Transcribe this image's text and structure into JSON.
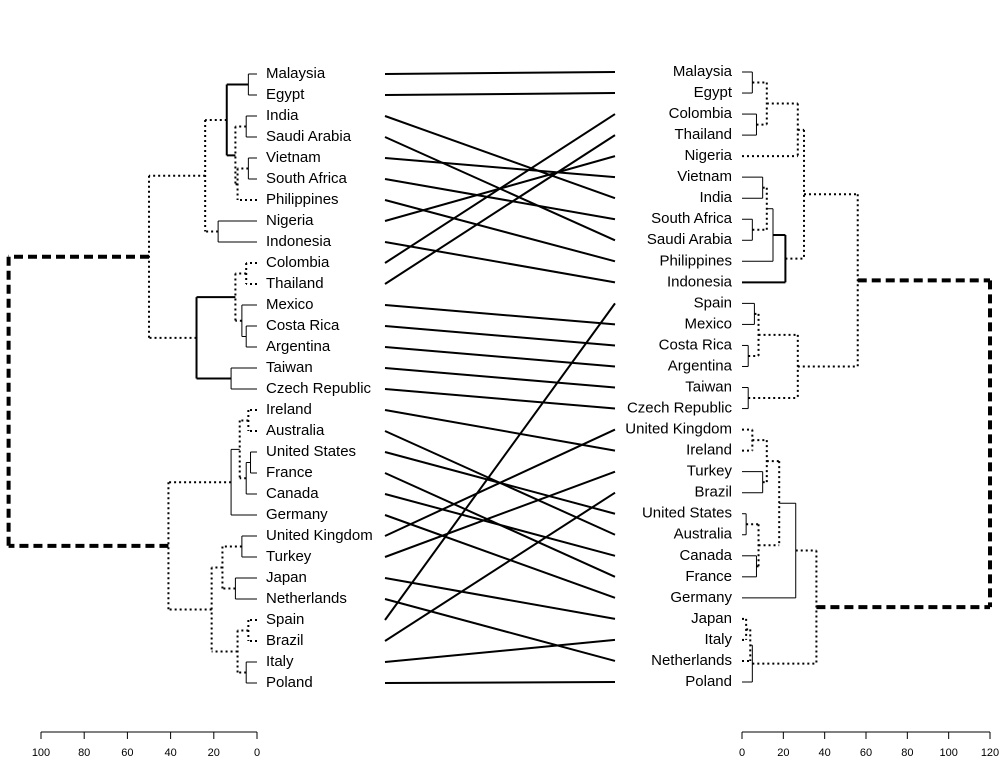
{
  "chart_data": {
    "type": "tanglegram",
    "left": {
      "labels": [
        "Malaysia",
        "Egypt",
        "India",
        "Saudi Arabia",
        "Vietnam",
        "South Africa",
        "Philippines",
        "Nigeria",
        "Indonesia",
        "Colombia",
        "Thailand",
        "Mexico",
        "Costa Rica",
        "Argentina",
        "Taiwan",
        "Czech Republic",
        "Ireland",
        "Australia",
        "United States",
        "France",
        "Canada",
        "Germany",
        "United Kingdom",
        "Turkey",
        "Japan",
        "Netherlands",
        "Spain",
        "Brazil",
        "Italy",
        "Poland"
      ],
      "merges": [
        {
          "children": [
            0,
            1
          ],
          "height": 4,
          "line": "solid"
        },
        {
          "children": [
            2,
            3
          ],
          "height": 5,
          "line": "solid"
        },
        {
          "children": [
            4,
            5
          ],
          "height": 4,
          "line": "solid"
        },
        {
          "children": [
            32,
            6
          ],
          "height": 9,
          "line": "dotted"
        },
        {
          "children": [
            31,
            33
          ],
          "height": 10,
          "line": "dotted"
        },
        {
          "children": [
            30,
            34
          ],
          "height": 14,
          "line": "bold"
        },
        {
          "children": [
            7,
            8
          ],
          "height": 18,
          "line": "solid"
        },
        {
          "children": [
            35,
            36
          ],
          "height": 24,
          "line": "dotted"
        },
        {
          "children": [
            9,
            10
          ],
          "height": 5,
          "line": "dotted"
        },
        {
          "children": [
            12,
            13
          ],
          "height": 5,
          "line": "solid"
        },
        {
          "children": [
            11,
            39
          ],
          "height": 7,
          "line": "solid"
        },
        {
          "children": [
            38,
            40
          ],
          "height": 10,
          "line": "dotted"
        },
        {
          "children": [
            14,
            15
          ],
          "height": 12,
          "line": "solid"
        },
        {
          "children": [
            41,
            42
          ],
          "height": 28,
          "line": "bold"
        },
        {
          "children": [
            37,
            43
          ],
          "height": 50,
          "line": "dotted"
        },
        {
          "children": [
            16,
            17
          ],
          "height": 4,
          "line": "dotted"
        },
        {
          "children": [
            18,
            19
          ],
          "height": 3,
          "line": "solid"
        },
        {
          "children": [
            46,
            20
          ],
          "height": 5,
          "line": "solid"
        },
        {
          "children": [
            45,
            47
          ],
          "height": 8,
          "line": "dotted"
        },
        {
          "children": [
            48,
            21
          ],
          "height": 12,
          "line": "solid"
        },
        {
          "children": [
            22,
            23
          ],
          "height": 7,
          "line": "solid"
        },
        {
          "children": [
            24,
            25
          ],
          "height": 10,
          "line": "solid"
        },
        {
          "children": [
            50,
            51
          ],
          "height": 16,
          "line": "dotted"
        },
        {
          "children": [
            26,
            27
          ],
          "height": 4,
          "line": "dotted"
        },
        {
          "children": [
            28,
            29
          ],
          "height": 5,
          "line": "solid"
        },
        {
          "children": [
            53,
            54
          ],
          "height": 9,
          "line": "dotted"
        },
        {
          "children": [
            52,
            55
          ],
          "height": 21,
          "line": "dotted"
        },
        {
          "children": [
            49,
            56
          ],
          "height": 41,
          "line": "dotted"
        },
        {
          "children": [
            44,
            57
          ],
          "height": 115,
          "line": "dashed"
        }
      ],
      "xlim": [
        100,
        0
      ],
      "xticks": [
        0,
        20,
        40,
        60,
        80,
        100
      ]
    },
    "right": {
      "labels": [
        "Malaysia",
        "Egypt",
        "Colombia",
        "Thailand",
        "Nigeria",
        "Vietnam",
        "India",
        "South Africa",
        "Saudi Arabia",
        "Philippines",
        "Indonesia",
        "Spain",
        "Mexico",
        "Costa Rica",
        "Argentina",
        "Taiwan",
        "Czech Republic",
        "United Kingdom",
        "Ireland",
        "Turkey",
        "Brazil",
        "United States",
        "Australia",
        "Canada",
        "France",
        "Germany",
        "Japan",
        "Italy",
        "Netherlands",
        "Poland"
      ],
      "merges": [
        {
          "children": [
            0,
            1
          ],
          "height": 5,
          "line": "solid"
        },
        {
          "children": [
            2,
            3
          ],
          "height": 7,
          "line": "solid"
        },
        {
          "children": [
            30,
            31
          ],
          "height": 12,
          "line": "dotted"
        },
        {
          "children": [
            32,
            4
          ],
          "height": 27,
          "line": "dotted"
        },
        {
          "children": [
            5,
            6
          ],
          "height": 10,
          "line": "solid"
        },
        {
          "children": [
            7,
            8
          ],
          "height": 5,
          "line": "solid"
        },
        {
          "children": [
            34,
            35
          ],
          "height": 12,
          "line": "dotted"
        },
        {
          "children": [
            36,
            9
          ],
          "height": 15,
          "line": "solid"
        },
        {
          "children": [
            37,
            10
          ],
          "height": 21,
          "line": "bold"
        },
        {
          "children": [
            33,
            38
          ],
          "height": 30,
          "line": "dotted"
        },
        {
          "children": [
            11,
            12
          ],
          "height": 6,
          "line": "solid"
        },
        {
          "children": [
            13,
            14
          ],
          "height": 3,
          "line": "solid"
        },
        {
          "children": [
            40,
            41
          ],
          "height": 8,
          "line": "dotted"
        },
        {
          "children": [
            15,
            16
          ],
          "height": 3,
          "line": "solid"
        },
        {
          "children": [
            42,
            43
          ],
          "height": 27,
          "line": "dotted"
        },
        {
          "children": [
            39,
            44
          ],
          "height": 56,
          "line": "dotted"
        },
        {
          "children": [
            17,
            18
          ],
          "height": 5,
          "line": "dotted"
        },
        {
          "children": [
            19,
            20
          ],
          "height": 10,
          "line": "solid"
        },
        {
          "children": [
            46,
            47
          ],
          "height": 12,
          "line": "dotted"
        },
        {
          "children": [
            21,
            22
          ],
          "height": 2,
          "line": "solid"
        },
        {
          "children": [
            23,
            24
          ],
          "height": 7,
          "line": "solid"
        },
        {
          "children": [
            49,
            50
          ],
          "height": 8,
          "line": "dotted"
        },
        {
          "children": [
            48,
            51
          ],
          "height": 18,
          "line": "dotted"
        },
        {
          "children": [
            52,
            25
          ],
          "height": 26,
          "line": "solid"
        },
        {
          "children": [
            26,
            27
          ],
          "height": 2,
          "line": "dotted"
        },
        {
          "children": [
            54,
            28
          ],
          "height": 4,
          "line": "dotted"
        },
        {
          "children": [
            55,
            29
          ],
          "height": 5,
          "line": "solid"
        },
        {
          "children": [
            53,
            56
          ],
          "height": 36,
          "line": "dotted"
        },
        {
          "children": [
            45,
            57
          ],
          "height": 120,
          "line": "dashed"
        }
      ],
      "xlim": [
        0,
        120
      ],
      "xticks": [
        0,
        20,
        40,
        60,
        80,
        100,
        120
      ]
    }
  }
}
